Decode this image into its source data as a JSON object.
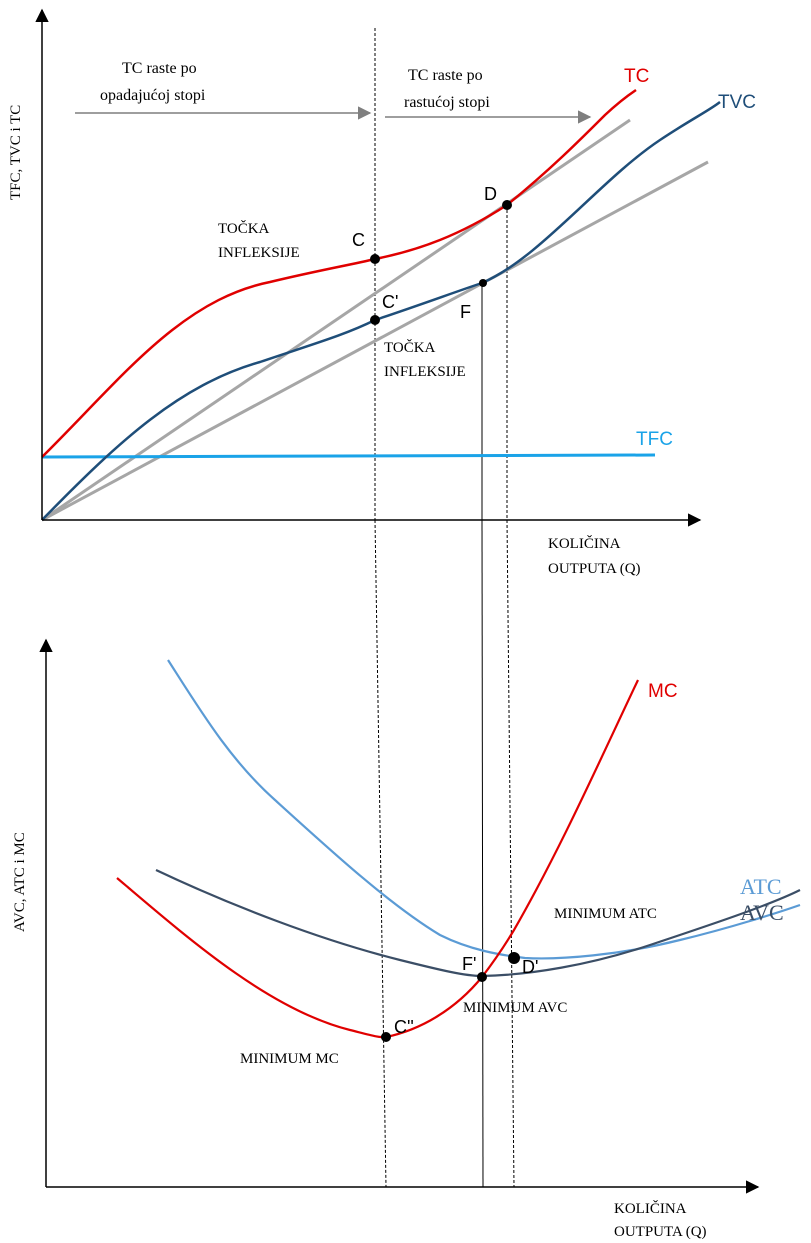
{
  "colors": {
    "tc": "#e00000",
    "tvc": "#1f4e79",
    "tfc": "#1aa3e8",
    "ray": "#a6a6a6",
    "atc": "#5b9bd5",
    "avc": "#3b4e66",
    "mc": "#e00000",
    "axis": "#000000"
  },
  "chart_data": [
    {
      "type": "line",
      "ylabel": "TFC, TVC i TC",
      "xlabel_line1": "KOLIČINA",
      "xlabel_line2": "OUTPUTA (Q)",
      "series": [
        {
          "name": "TC"
        },
        {
          "name": "TVC"
        },
        {
          "name": "TFC"
        }
      ],
      "points": [
        {
          "label": "C",
          "series": "TC"
        },
        {
          "label": "C'",
          "series": "TVC"
        },
        {
          "label": "D",
          "series": "TC"
        },
        {
          "label": "F",
          "series": "TVC"
        }
      ],
      "annotations": {
        "tc_decreasing_line1": "TC raste po",
        "tc_decreasing_line2": "opadajućoj stopi",
        "tc_increasing_line1": "TC raste po",
        "tc_increasing_line2": "rastućoj stopi",
        "inflection_top_line1": "TOČKA",
        "inflection_top_line2": "INFLEKSIJE",
        "inflection_bottom_line1": "TOČKA",
        "inflection_bottom_line2": "INFLEKSIJE"
      }
    },
    {
      "type": "line",
      "ylabel": "AVC, ATC i MC",
      "xlabel_line1": "KOLIČINA",
      "xlabel_line2": "OUTPUTA (Q)",
      "series": [
        {
          "name": "MC"
        },
        {
          "name": "ATC"
        },
        {
          "name": "AVC"
        }
      ],
      "points": [
        {
          "label": "C''",
          "series": "MC"
        },
        {
          "label": "F'",
          "series": "AVC"
        },
        {
          "label": "D'",
          "series": "ATC"
        }
      ],
      "annotations": {
        "min_mc": "MINIMUM MC",
        "min_avc": "MINIMUM AVC",
        "min_atc": "MINIMUM ATC"
      }
    }
  ]
}
